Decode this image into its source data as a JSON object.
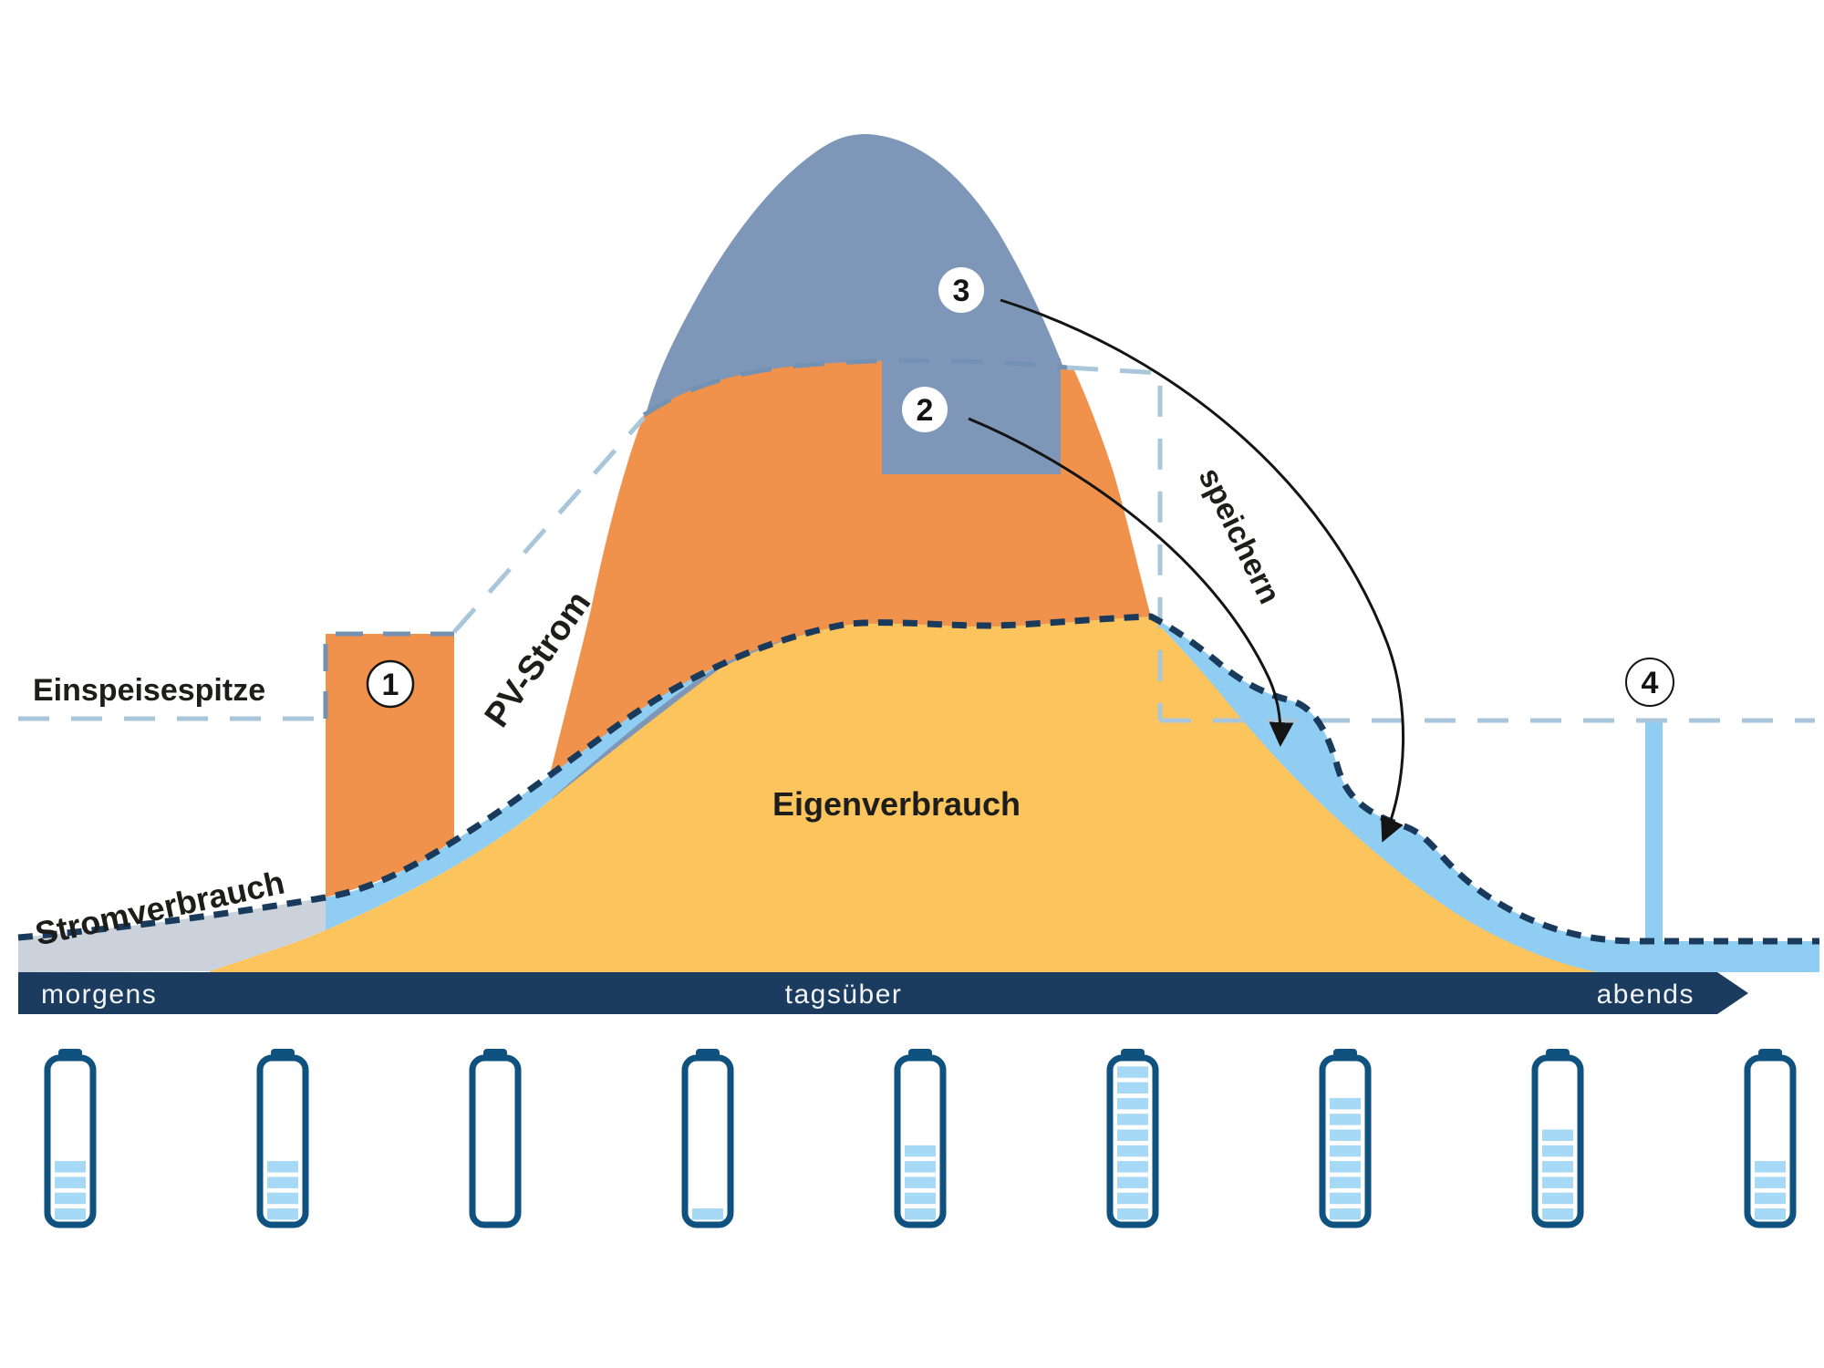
{
  "diagram": {
    "labels": {
      "einspeisespitze": "Einspeisespitze",
      "stromverbrauch": "Stromverbrauch",
      "pv_strom": "PV-Strom",
      "eigenverbrauch": "Eigenverbrauch",
      "speichern": "speichern"
    },
    "markers": {
      "m1": "1",
      "m2": "2",
      "m3": "3",
      "m4": "4"
    },
    "timeline": {
      "morning": "morgens",
      "day": "tagsüber",
      "evening": "abends"
    },
    "areas": [
      {
        "name": "pv-surplus-peak-area",
        "color_key": "bluegray"
      },
      {
        "name": "pv-strom-area",
        "color_key": "orange"
      },
      {
        "name": "eigenverbrauch-area",
        "color_key": "yellow"
      },
      {
        "name": "battery-discharge-area",
        "color_key": "lightblue"
      },
      {
        "name": "grid-consumption-morning-area",
        "color_key": "gray"
      }
    ]
  },
  "batteries": {
    "max_segments": 10,
    "levels": [
      4,
      4,
      0,
      1,
      5,
      10,
      8,
      6,
      4
    ]
  },
  "colors": {
    "orange": "#F0924B",
    "yellow": "#FBC45C",
    "bluegray": "#7E97B8",
    "lightblue": "#8FCEF2",
    "gray": "#CBD2DB",
    "navy": "#1B3C5E",
    "dash-navy": "#1A3A5C",
    "dash-lightblue": "#A9C6DB",
    "dash-bluegray": "#7391B3",
    "battery-outline": "#10527F",
    "battery-fill": "#A6D9F6",
    "label-text": "#1D1D1B",
    "timeline-text": "#F2F5F7"
  }
}
